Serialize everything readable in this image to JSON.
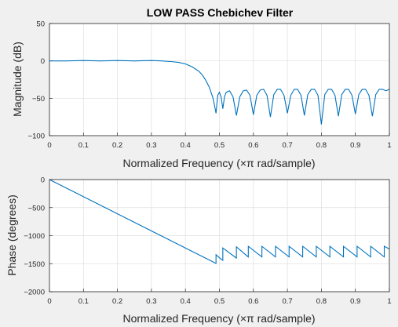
{
  "figure": {
    "title": "LOW PASS Chebichev Filter",
    "background_color": "#f0f0f0",
    "axes_background": "#ffffff",
    "line_color": "#0072bd"
  },
  "chart_data": [
    {
      "type": "line",
      "title": "LOW PASS Chebichev Filter",
      "xlabel": "Normalized Frequency  (×π rad/sample)",
      "ylabel": "Magnitude (dB)",
      "xlim": [
        0,
        1
      ],
      "ylim": [
        -100,
        50
      ],
      "grid": true,
      "xticks": [
        0,
        0.1,
        0.2,
        0.3,
        0.4,
        0.5,
        0.6,
        0.7,
        0.8,
        0.9,
        1
      ],
      "yticks": [
        50,
        0,
        -50,
        -100
      ],
      "series": [
        {
          "x": [
            0,
            0.05,
            0.1,
            0.15,
            0.2,
            0.25,
            0.3,
            0.33,
            0.36,
            0.38,
            0.4,
            0.42,
            0.44,
            0.45,
            0.46,
            0.47,
            0.48,
            0.485,
            0.49,
            0.495,
            0.5,
            0.505,
            0.51,
            0.515,
            0.52,
            0.53,
            0.54,
            0.55,
            0.56,
            0.57,
            0.58,
            0.59,
            0.6,
            0.61,
            0.62,
            0.63,
            0.64,
            0.65,
            0.66,
            0.67,
            0.68,
            0.69,
            0.7,
            0.71,
            0.72,
            0.73,
            0.74,
            0.75,
            0.76,
            0.77,
            0.78,
            0.79,
            0.8,
            0.81,
            0.82,
            0.83,
            0.84,
            0.85,
            0.86,
            0.87,
            0.88,
            0.89,
            0.9,
            0.91,
            0.92,
            0.93,
            0.94,
            0.95,
            0.96,
            0.97,
            0.98,
            0.99,
            1.0
          ],
          "y": [
            0,
            0,
            0.5,
            0,
            0.5,
            0,
            0.5,
            0,
            -1,
            -2,
            -4,
            -8,
            -14,
            -19,
            -26,
            -35,
            -48,
            -58,
            -70,
            -46,
            -42,
            -48,
            -64,
            -48,
            -42,
            -40,
            -48,
            -73,
            -48,
            -40,
            -39,
            -46,
            -72,
            -46,
            -39,
            -38,
            -46,
            -75,
            -45,
            -38,
            -38,
            -46,
            -70,
            -46,
            -38,
            -38,
            -46,
            -73,
            -45,
            -38,
            -38,
            -46,
            -85,
            -45,
            -38,
            -38,
            -46,
            -74,
            -45,
            -38,
            -38,
            -46,
            -71,
            -45,
            -38,
            -38,
            -46,
            -74,
            -45,
            -38,
            -38,
            -40,
            -38
          ]
        }
      ]
    },
    {
      "type": "line",
      "title": "",
      "xlabel": "Normalized Frequency  (×π rad/sample)",
      "ylabel": "Phase (degrees)",
      "xlim": [
        0,
        1
      ],
      "ylim": [
        -2000,
        0
      ],
      "grid": true,
      "xticks": [
        0,
        0.1,
        0.2,
        0.3,
        0.4,
        0.5,
        0.6,
        0.7,
        0.8,
        0.9,
        1
      ],
      "yticks": [
        0,
        -500,
        -1000,
        -1500,
        -2000
      ],
      "series": [
        {
          "x": [
            0,
            0.49,
            0.49,
            0.505,
            0.51,
            0.51,
            0.55,
            0.55,
            0.585,
            0.585,
            0.625,
            0.625,
            0.665,
            0.665,
            0.705,
            0.705,
            0.745,
            0.745,
            0.785,
            0.785,
            0.825,
            0.825,
            0.865,
            0.865,
            0.905,
            0.905,
            0.945,
            0.945,
            0.985,
            0.985,
            1.0
          ],
          "y": [
            0,
            -1495,
            -1340,
            -1420,
            -1440,
            -1220,
            -1400,
            -1200,
            -1380,
            -1190,
            -1380,
            -1190,
            -1380,
            -1190,
            -1380,
            -1190,
            -1380,
            -1190,
            -1380,
            -1190,
            -1380,
            -1190,
            -1380,
            -1190,
            -1380,
            -1190,
            -1380,
            -1190,
            -1380,
            -1190,
            -1240
          ]
        }
      ]
    }
  ]
}
